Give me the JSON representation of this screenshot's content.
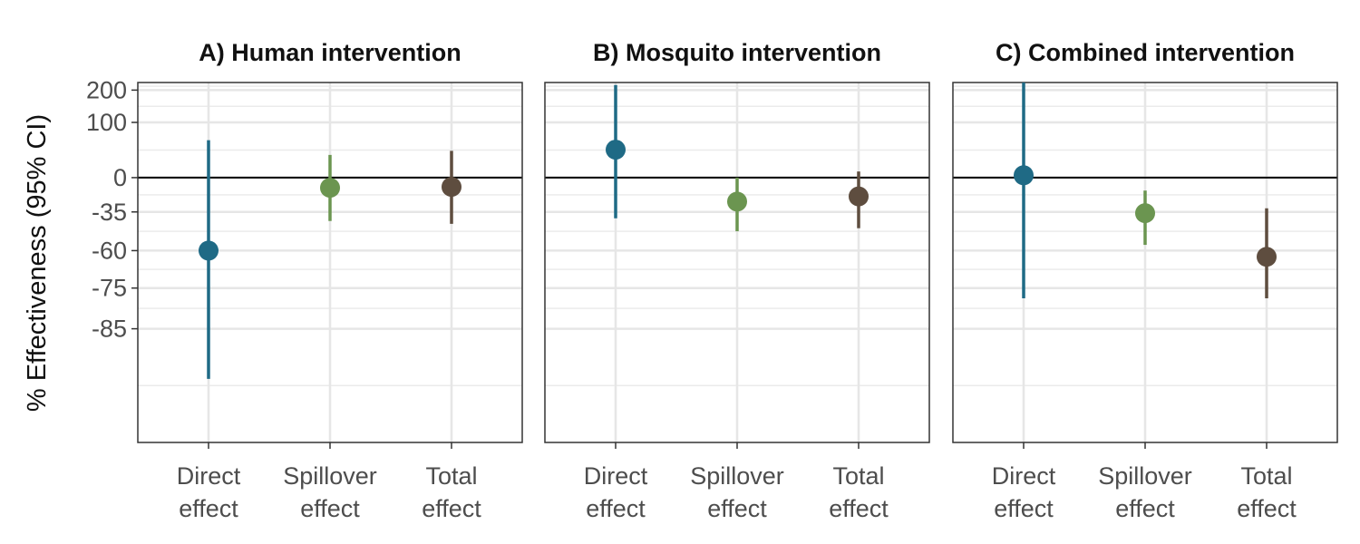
{
  "chart_data": {
    "type": "scatter",
    "ylabel": "% Effectiveness (95% CI)",
    "y_axis_scale": "transformed (compressed toward -100)",
    "y_ticks": [
      200,
      100,
      0,
      -35,
      -60,
      -75,
      -85
    ],
    "y_tick_labels": [
      "200",
      "100",
      "0",
      "-35",
      "-60",
      "-75",
      "-85"
    ],
    "categories": [
      "Direct effect",
      "Spillover effect",
      "Total effect"
    ],
    "category_labels": [
      [
        "Direct",
        "effect"
      ],
      [
        "Spillover",
        "effect"
      ],
      [
        "Total",
        "effect"
      ]
    ],
    "colors": {
      "Direct effect": "#1f6a85",
      "Spillover effect": "#6b9550",
      "Total effect": "#5e4d3f"
    },
    "reference_line": 0,
    "grid": true,
    "legend": "none",
    "panels": [
      {
        "title": "A) Human intervention",
        "points": [
          {
            "category": "Direct effect",
            "estimate": -60,
            "lower": -92,
            "upper": 60
          },
          {
            "category": "Spillover effect",
            "estimate": -12,
            "lower": -42,
            "upper": 33
          },
          {
            "category": "Total effect",
            "estimate": -11,
            "lower": -44,
            "upper": 40
          }
        ]
      },
      {
        "title": "B) Mosquito intervention",
        "points": [
          {
            "category": "Direct effect",
            "estimate": 42,
            "lower": -40,
            "upper": 220
          },
          {
            "category": "Spillover effect",
            "estimate": -26,
            "lower": -49,
            "upper": 0
          },
          {
            "category": "Total effect",
            "estimate": -21,
            "lower": -47,
            "upper": 8
          }
        ]
      },
      {
        "title": "C) Combined intervention",
        "points": [
          {
            "category": "Direct effect",
            "estimate": 3,
            "lower": -78,
            "upper": 280
          },
          {
            "category": "Spillover effect",
            "estimate": -36,
            "lower": -57,
            "upper": -15
          },
          {
            "category": "Total effect",
            "estimate": -63,
            "lower": -78,
            "upper": -32
          }
        ]
      }
    ]
  }
}
